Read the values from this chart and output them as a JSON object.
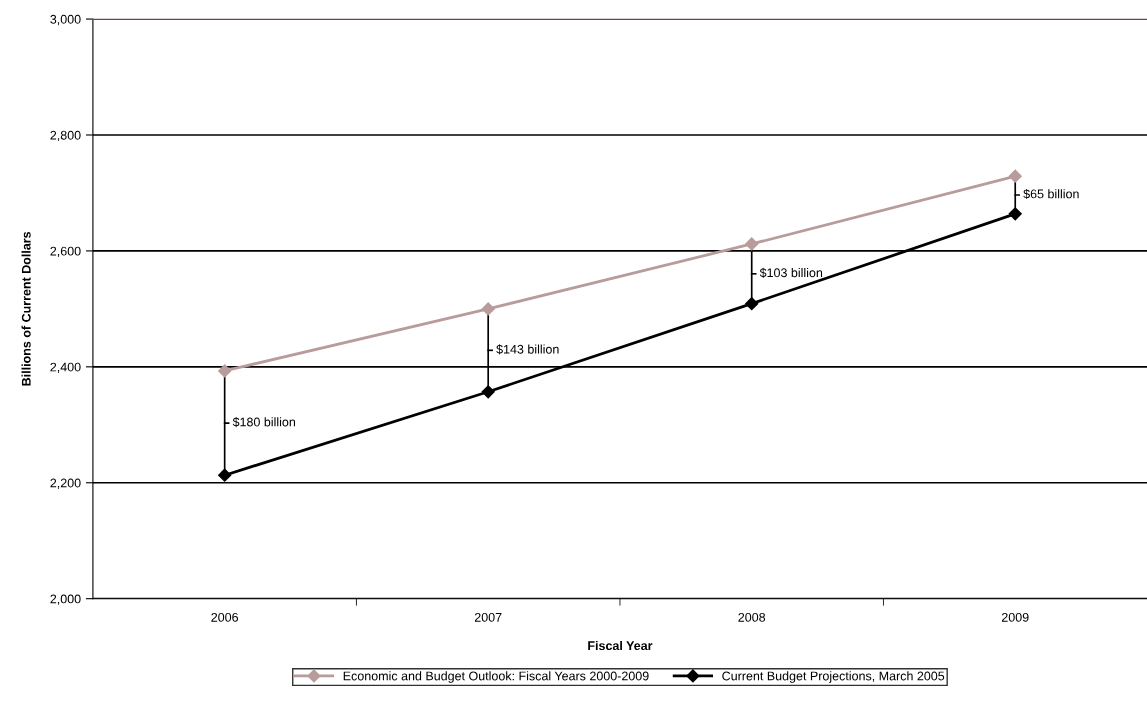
{
  "chart_data": {
    "type": "line",
    "xlabel": "Fiscal Year",
    "ylabel": "Billions of Current Dollars",
    "categories": [
      "2006",
      "2007",
      "2008",
      "2009"
    ],
    "series": [
      {
        "name": "Economic and Budget Outlook: Fiscal Years 2000-2009",
        "color": "#b89c9c",
        "values": [
          2393,
          2500,
          2612,
          2729
        ]
      },
      {
        "name": "Current Budget Projections, March 2005",
        "color": "#000000",
        "values": [
          2213,
          2357,
          2509,
          2664
        ]
      }
    ],
    "ylim": [
      2000,
      3000
    ],
    "yticks": [
      {
        "value": 2000,
        "label": "2,000"
      },
      {
        "value": 2200,
        "label": "2,200"
      },
      {
        "value": 2400,
        "label": "2,400"
      },
      {
        "value": 2600,
        "label": "2,600"
      },
      {
        "value": 2800,
        "label": "2,800"
      },
      {
        "value": 3000,
        "label": "3,000"
      }
    ],
    "grid": "y",
    "legend": "bottom",
    "marker": "diamond",
    "line_style": "solid",
    "annotations": [
      "$180 billion",
      "$143 billion",
      "$103 billion",
      "$65 billion"
    ]
  }
}
